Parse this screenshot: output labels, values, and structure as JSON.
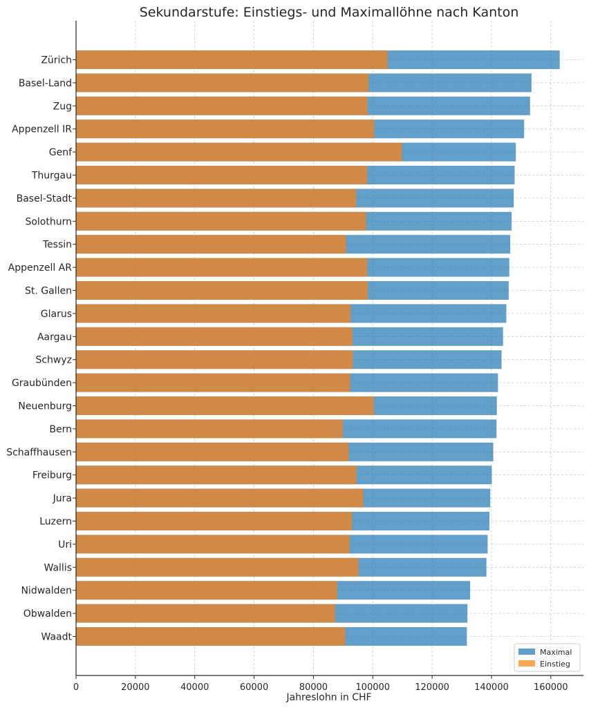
{
  "chart_data": {
    "type": "bar",
    "orientation": "horizontal",
    "stacking": "overlay",
    "title": "Sekundarstufe: Einstiegs- und Maximallöhne nach Kanton",
    "xlabel": "Jahreslohn in CHF",
    "ylabel": "",
    "xlim": [
      0,
      171000
    ],
    "xticks": [
      "0",
      "20000",
      "40000",
      "60000",
      "80000",
      "100000",
      "120000",
      "140000",
      "160000"
    ],
    "grid": true,
    "legend_position": "bottom-right",
    "categories": [
      "Zürich",
      "Basel-Land",
      "Zug",
      "Appenzell IR",
      "Genf",
      "Thurgau",
      "Basel-Stadt",
      "Solothurn",
      "Tessin",
      "Appenzell AR",
      "St. Gallen",
      "Glarus",
      "Aargau",
      "Schwyz",
      "Graubünden",
      "Neuenburg",
      "Bern",
      "Schaffhausen",
      "Freiburg",
      "Jura",
      "Luzern",
      "Uri",
      "Wallis",
      "Nidwalden",
      "Obwalden",
      "Waadt"
    ],
    "series": [
      {
        "name": "Maximal",
        "color": "#1f77b4",
        "values": [
          163000,
          153500,
          153000,
          151000,
          148200,
          147800,
          147500,
          146800,
          146300,
          146000,
          145800,
          145000,
          143900,
          143400,
          142200,
          141800,
          141700,
          140600,
          140100,
          139600,
          139300,
          138700,
          138300,
          132800,
          131900,
          131700
        ]
      },
      {
        "name": "Einstieg",
        "color": "#ff7f0e",
        "values": [
          105000,
          98600,
          98200,
          100500,
          109800,
          98100,
          94400,
          97700,
          91000,
          98100,
          98300,
          92500,
          93100,
          93300,
          92400,
          100400,
          89900,
          91900,
          94500,
          96800,
          93000,
          92200,
          95200,
          88000,
          87300,
          90700
        ]
      }
    ]
  }
}
